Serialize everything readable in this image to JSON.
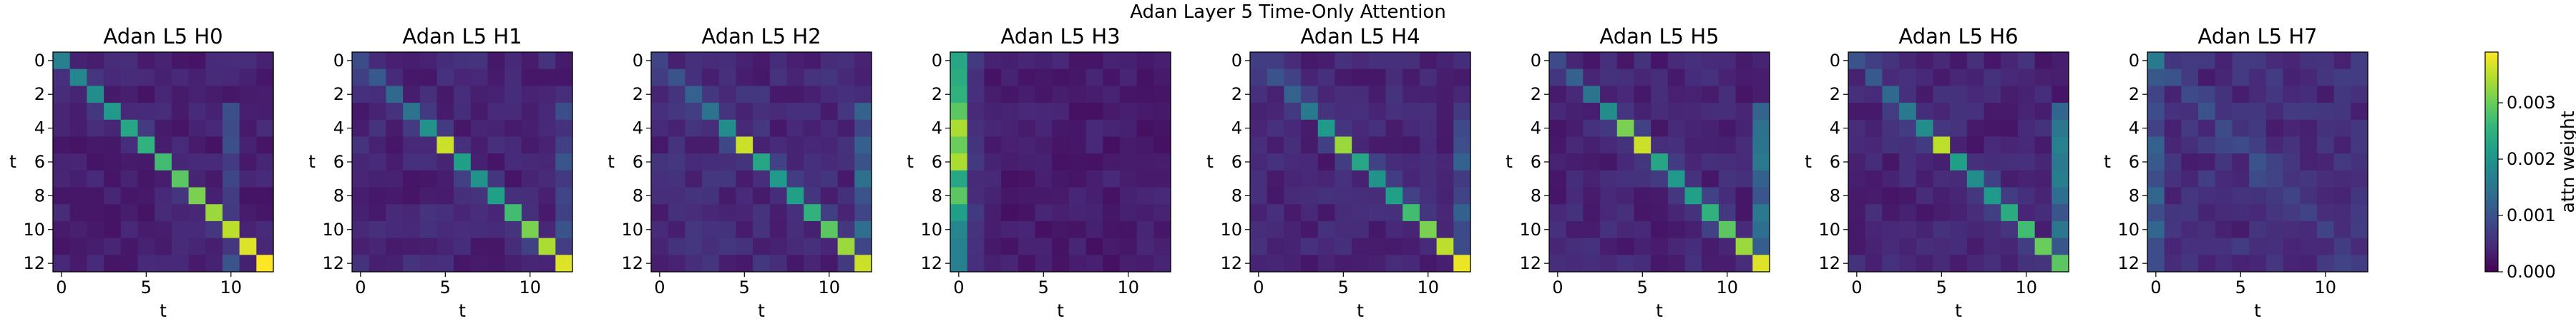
{
  "figure": {
    "suptitle": "Adan Layer 5 Time-Only Attention"
  },
  "colormap": [
    "#440154",
    "#482878",
    "#3e4989",
    "#31688e",
    "#26828e",
    "#1f9e89",
    "#35b779",
    "#6ece58",
    "#b5de2b",
    "#fde725"
  ],
  "chart_data": [
    {
      "type": "heatmap",
      "title": "Adan L5 H0",
      "xlabel": "t",
      "ylabel": "t",
      "xticks": [
        0,
        5,
        10
      ],
      "yticks": [
        0,
        2,
        4,
        6,
        8,
        10,
        12
      ],
      "shape": [
        13,
        13
      ],
      "vmin": 0.0,
      "vmax": 0.0039,
      "pattern": "diagonal",
      "diag": [
        0.0017,
        0.0018,
        0.0019,
        0.0021,
        0.0023,
        0.0025,
        0.0027,
        0.0029,
        0.0031,
        0.0033,
        0.0035,
        0.0037,
        0.0039
      ],
      "background": 0.00035,
      "emphasis": {
        "col": 10,
        "value": 0.0009
      }
    },
    {
      "type": "heatmap",
      "title": "Adan L5 H1",
      "xlabel": "t",
      "ylabel": "t",
      "xticks": [
        0,
        5,
        10
      ],
      "yticks": [
        0,
        2,
        4,
        6,
        8,
        10,
        12
      ],
      "shape": [
        13,
        13
      ],
      "vmin": 0.0,
      "vmax": 0.0039,
      "pattern": "diagonal",
      "diag": [
        0.0009,
        0.0011,
        0.0013,
        0.0015,
        0.002,
        0.0036,
        0.0022,
        0.002,
        0.0022,
        0.0027,
        0.0031,
        0.0034,
        0.0037
      ],
      "background": 0.0004,
      "emphasis": {
        "col": 12,
        "value": 0.0009
      }
    },
    {
      "type": "heatmap",
      "title": "Adan L5 H2",
      "xlabel": "t",
      "ylabel": "t",
      "xticks": [
        0,
        5,
        10
      ],
      "yticks": [
        0,
        2,
        4,
        6,
        8,
        10,
        12
      ],
      "shape": [
        13,
        13
      ],
      "vmin": 0.0,
      "vmax": 0.0039,
      "pattern": "diagonal",
      "diag": [
        0.0008,
        0.001,
        0.0012,
        0.0015,
        0.0019,
        0.0036,
        0.0023,
        0.0021,
        0.0022,
        0.0025,
        0.0029,
        0.0033,
        0.0036
      ],
      "background": 0.00045,
      "emphasis": {
        "col": 12,
        "value": 0.0013
      }
    },
    {
      "type": "heatmap",
      "title": "Adan L5 H3",
      "xlabel": "t",
      "ylabel": "t",
      "xticks": [
        0,
        5,
        10
      ],
      "yticks": [
        0,
        2,
        4,
        6,
        8,
        10,
        12
      ],
      "shape": [
        13,
        13
      ],
      "vmin": 0.0,
      "vmax": 0.0039,
      "pattern": "first_column",
      "column": [
        0.0023,
        0.0024,
        0.0025,
        0.0029,
        0.0034,
        0.003,
        0.0034,
        0.0023,
        0.0029,
        0.0022,
        0.0018,
        0.0017,
        0.0017
      ],
      "background": 0.0003,
      "emphasis": {
        "col": 1,
        "value": 0.0006
      }
    },
    {
      "type": "heatmap",
      "title": "Adan L5 H4",
      "xlabel": "t",
      "ylabel": "t",
      "xticks": [
        0,
        5,
        10
      ],
      "yticks": [
        0,
        2,
        4,
        6,
        8,
        10,
        12
      ],
      "shape": [
        13,
        13
      ],
      "vmin": 0.0,
      "vmax": 0.0039,
      "pattern": "diagonal",
      "diag": [
        0.0007,
        0.001,
        0.0012,
        0.0016,
        0.0021,
        0.0033,
        0.0023,
        0.002,
        0.0022,
        0.0027,
        0.0031,
        0.0035,
        0.0038
      ],
      "background": 0.0004,
      "emphasis": {
        "col": 12,
        "value": 0.001
      }
    },
    {
      "type": "heatmap",
      "title": "Adan L5 H5",
      "xlabel": "t",
      "ylabel": "t",
      "xticks": [
        0,
        5,
        10
      ],
      "yticks": [
        0,
        2,
        4,
        6,
        8,
        10,
        12
      ],
      "shape": [
        13,
        13
      ],
      "vmin": 0.0,
      "vmax": 0.0039,
      "pattern": "diagonal",
      "diag": [
        0.0009,
        0.0012,
        0.0015,
        0.0019,
        0.0031,
        0.0036,
        0.0023,
        0.0021,
        0.0022,
        0.0025,
        0.0029,
        0.0033,
        0.0037
      ],
      "background": 0.0004,
      "emphasis": {
        "col": 12,
        "value": 0.0014
      }
    },
    {
      "type": "heatmap",
      "title": "Adan L5 H6",
      "xlabel": "t",
      "ylabel": "t",
      "xticks": [
        0,
        5,
        10
      ],
      "yticks": [
        0,
        2,
        4,
        6,
        8,
        10,
        12
      ],
      "shape": [
        13,
        13
      ],
      "vmin": 0.0,
      "vmax": 0.0039,
      "pattern": "diagonal",
      "diag": [
        0.001,
        0.0011,
        0.0013,
        0.0016,
        0.0019,
        0.0035,
        0.0022,
        0.0019,
        0.0021,
        0.0024,
        0.0027,
        0.003,
        0.0029
      ],
      "background": 0.0004,
      "emphasis": {
        "col": 12,
        "value": 0.0015
      }
    },
    {
      "type": "heatmap",
      "title": "Adan L5 H7",
      "xlabel": "t",
      "ylabel": "t",
      "xticks": [
        0,
        5,
        10
      ],
      "yticks": [
        0,
        2,
        4,
        6,
        8,
        10,
        12
      ],
      "shape": [
        13,
        13
      ],
      "vmin": 0.0,
      "vmax": 0.0039,
      "pattern": "diffuse",
      "diag": [
        0.0016,
        0.001,
        0.0009,
        0.001,
        0.0009,
        0.0009,
        0.001,
        0.0008,
        0.0008,
        0.0008,
        0.0008,
        0.0007,
        0.0007
      ],
      "background": 0.0005,
      "emphasis": {
        "col": 0,
        "value": 0.0012
      }
    }
  ],
  "colorbar": {
    "label": "attn weight",
    "vmin": 0.0,
    "vmax": 0.0039,
    "ticks": [
      0.0,
      0.001,
      0.002,
      0.003
    ],
    "tick_labels": [
      "0.000",
      "0.001",
      "0.002",
      "0.003"
    ]
  }
}
